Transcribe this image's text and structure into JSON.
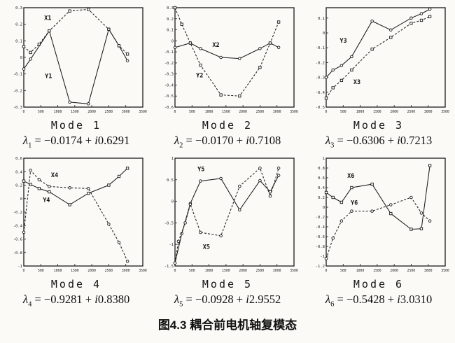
{
  "figure": {
    "caption": "图4.3 耦合前电机轴复模态"
  },
  "chart_data": [
    {
      "type": "line",
      "title": "Mode 1",
      "eigenvalue": {
        "sym": "λ",
        "sub": "1",
        "pre": "= −0.0174 + ",
        "i": "i",
        "imag": "0.6291"
      },
      "xlim": [
        0,
        3500
      ],
      "ylim": [
        -0.3,
        0.3
      ],
      "xticks": [
        "0",
        "500",
        "1000",
        "1500",
        "2000",
        "2500",
        "3000",
        "3500"
      ],
      "yticks": [
        "0.3",
        "0.2",
        "0.1",
        "0",
        "-0.1",
        "-0.2",
        "-0.3"
      ],
      "grid": false,
      "legend": "inline-labels",
      "series": [
        {
          "name": "X1",
          "line": "dashed",
          "marker": "square",
          "label_at": [
            600,
            0.225
          ],
          "points": [
            [
              0,
              0.065
            ],
            [
              200,
              0.03
            ],
            [
              450,
              0.08
            ],
            [
              750,
              0.16
            ],
            [
              1350,
              0.28
            ],
            [
              1900,
              0.29
            ],
            [
              2500,
              0.17
            ],
            [
              2800,
              0.07
            ],
            [
              3050,
              0.02
            ]
          ]
        },
        {
          "name": "Y1",
          "line": "solid",
          "marker": "circle",
          "label_at": [
            620,
            -0.125
          ],
          "points": [
            [
              0,
              -0.07
            ],
            [
              200,
              -0.01
            ],
            [
              750,
              0.16
            ],
            [
              1350,
              -0.27
            ],
            [
              1900,
              -0.28
            ],
            [
              2500,
              0.17
            ],
            [
              2800,
              0.07
            ],
            [
              3050,
              -0.02
            ]
          ]
        }
      ]
    },
    {
      "type": "line",
      "title": "Mode 2",
      "eigenvalue": {
        "sym": "λ",
        "sub": "2",
        "pre": "= −0.0170 + ",
        "i": "i",
        "imag": "0.7108"
      },
      "xlim": [
        0,
        3500
      ],
      "ylim": [
        -0.6,
        0.3
      ],
      "xticks": [
        "0",
        "500",
        "1000",
        "1500",
        "2000",
        "2500",
        "3000",
        "3500"
      ],
      "yticks": [
        "0.3",
        "0.2",
        "0.1",
        "0",
        "-0.1",
        "-0.2",
        "-0.3",
        "-0.4",
        "-0.5",
        "-0.6"
      ],
      "grid": false,
      "legend": "inline-labels",
      "series": [
        {
          "name": "X2",
          "line": "solid",
          "marker": "circle",
          "label_at": [
            1100,
            -0.055
          ],
          "points": [
            [
              0,
              -0.06
            ],
            [
              450,
              -0.02
            ],
            [
              750,
              -0.07
            ],
            [
              1350,
              -0.15
            ],
            [
              1900,
              -0.16
            ],
            [
              2500,
              -0.07
            ],
            [
              2800,
              -0.02
            ],
            [
              3050,
              -0.06
            ]
          ]
        },
        {
          "name": "Y2",
          "line": "dashed",
          "marker": "square",
          "label_at": [
            620,
            -0.33
          ],
          "points": [
            [
              0,
              0.3
            ],
            [
              200,
              0.15
            ],
            [
              450,
              -0.02
            ],
            [
              750,
              -0.22
            ],
            [
              1350,
              -0.49
            ],
            [
              1900,
              -0.5
            ],
            [
              2500,
              -0.24
            ],
            [
              2800,
              -0.02
            ],
            [
              3050,
              0.17
            ]
          ]
        }
      ]
    },
    {
      "type": "line",
      "title": "Mode 3",
      "eigenvalue": {
        "sym": "λ",
        "sub": "3",
        "pre": "= −0.6306 + ",
        "i": "i",
        "imag": "0.7213"
      },
      "xlim": [
        0,
        3500
      ],
      "ylim": [
        -0.5,
        0.17
      ],
      "xticks": [
        "0",
        "500",
        "1000",
        "1500",
        "2000",
        "2500",
        "3000",
        "3500"
      ],
      "yticks": [
        "0.1",
        "0",
        "-0.1",
        "-0.2",
        "-0.3",
        "-0.4",
        "-0.5"
      ],
      "grid": false,
      "legend": "inline-labels",
      "series": [
        {
          "name": "Y3",
          "line": "solid",
          "marker": "circle",
          "label_at": [
            400,
            -0.065
          ],
          "points": [
            [
              0,
              -0.3
            ],
            [
              200,
              -0.25
            ],
            [
              450,
              -0.22
            ],
            [
              750,
              -0.16
            ],
            [
              1350,
              0.08
            ],
            [
              1900,
              0.02
            ],
            [
              2500,
              0.1
            ],
            [
              2800,
              0.13
            ],
            [
              3050,
              0.16
            ]
          ]
        },
        {
          "name": "X3",
          "line": "dashed",
          "marker": "square",
          "label_at": [
            800,
            -0.345
          ],
          "points": [
            [
              0,
              -0.44
            ],
            [
              200,
              -0.37
            ],
            [
              450,
              -0.32
            ],
            [
              750,
              -0.25
            ],
            [
              1350,
              -0.11
            ],
            [
              1900,
              -0.03
            ],
            [
              2500,
              0.065
            ],
            [
              2800,
              0.085
            ],
            [
              3050,
              0.11
            ]
          ]
        }
      ]
    },
    {
      "type": "line",
      "title": "Mode 4",
      "eigenvalue": {
        "sym": "λ",
        "sub": "4",
        "pre": "= −0.9281 + ",
        "i": "i",
        "imag": "0.8380"
      },
      "xlim": [
        0,
        3500
      ],
      "ylim": [
        -1,
        0.6
      ],
      "xticks": [
        "0",
        "500",
        "1000",
        "1500",
        "2000",
        "2500",
        "3000",
        "3500"
      ],
      "yticks": [
        "0.6",
        "0.4",
        "0.2",
        "0",
        "-0.2",
        "-0.4",
        "-0.6",
        "-0.8",
        "-1"
      ],
      "grid": false,
      "legend": "inline-labels",
      "series": [
        {
          "name": "X4",
          "line": "dashed",
          "marker": "circle",
          "label_at": [
            800,
            0.32
          ],
          "points": [
            [
              0,
              -0.5
            ],
            [
              200,
              0.42
            ],
            [
              450,
              0.28
            ],
            [
              750,
              0.18
            ],
            [
              1350,
              0.16
            ],
            [
              1900,
              0.15
            ],
            [
              2500,
              -0.38
            ],
            [
              2800,
              -0.65
            ],
            [
              3050,
              -0.93
            ]
          ]
        },
        {
          "name": "Y4",
          "line": "solid",
          "marker": "square",
          "label_at": [
            560,
            -0.05
          ],
          "points": [
            [
              0,
              0.26
            ],
            [
              200,
              0.21
            ],
            [
              450,
              0.15
            ],
            [
              750,
              0.1
            ],
            [
              1350,
              -0.09
            ],
            [
              1900,
              0.08
            ],
            [
              2500,
              0.2
            ],
            [
              2800,
              0.33
            ],
            [
              3050,
              0.45
            ]
          ]
        }
      ]
    },
    {
      "type": "line",
      "title": "Mode 5",
      "eigenvalue": {
        "sym": "λ",
        "sub": "5",
        "pre": "= −0.0928 + ",
        "i": "i",
        "imag": "2.9552"
      },
      "xlim": [
        0,
        3500
      ],
      "ylim": [
        -1.5,
        1
      ],
      "xticks": [
        "0",
        "500",
        "1000",
        "1500",
        "2000",
        "2500",
        "3000",
        "3500"
      ],
      "yticks": [
        "1",
        "0.5",
        "0",
        "-0.5",
        "-1",
        "-1.5"
      ],
      "grid": false,
      "legend": "inline-labels",
      "series": [
        {
          "name": "Y5",
          "line": "solid",
          "marker": "circle",
          "label_at": [
            660,
            0.7
          ],
          "points": [
            [
              0,
              -1.43
            ],
            [
              200,
              -0.75
            ],
            [
              450,
              -0.05
            ],
            [
              750,
              0.47
            ],
            [
              1350,
              0.53
            ],
            [
              1900,
              -0.2
            ],
            [
              2500,
              0.48
            ],
            [
              2800,
              0.22
            ],
            [
              3050,
              0.6
            ]
          ]
        },
        {
          "name": "X5",
          "line": "dashed",
          "marker": "circle",
          "label_at": [
            820,
            -1.1
          ],
          "points": [
            [
              0,
              -1.43
            ],
            [
              100,
              -0.93
            ],
            [
              300,
              -0.5
            ],
            [
              450,
              -0.07
            ],
            [
              750,
              -0.72
            ],
            [
              1350,
              -0.8
            ],
            [
              1900,
              0.35
            ],
            [
              2500,
              0.77
            ],
            [
              2800,
              0.12
            ],
            [
              3050,
              0.77
            ]
          ]
        }
      ]
    },
    {
      "type": "line",
      "title": "Mode 6",
      "eigenvalue": {
        "sym": "λ",
        "sub": "6",
        "pre": "= −0.5428 + ",
        "i": "i",
        "imag": "3.0310"
      },
      "xlim": [
        0,
        3500
      ],
      "ylim": [
        -1.2,
        1
      ],
      "xticks": [
        "0",
        "500",
        "1000",
        "1500",
        "2000",
        "2500",
        "3000",
        "3500"
      ],
      "yticks": [
        "1",
        "0.8",
        "0.6",
        "0.4",
        "0.2",
        "0",
        "-0.2",
        "-0.4",
        "-0.6",
        "-0.8",
        "-1",
        "-1.2"
      ],
      "grid": false,
      "legend": "inline-labels",
      "series": [
        {
          "name": "X6",
          "line": "solid",
          "marker": "square",
          "label_at": [
            620,
            0.6
          ],
          "points": [
            [
              0,
              0.3
            ],
            [
              200,
              0.2
            ],
            [
              450,
              0.1
            ],
            [
              750,
              0.4
            ],
            [
              1350,
              0.47
            ],
            [
              1900,
              -0.13
            ],
            [
              2500,
              -0.45
            ],
            [
              2800,
              -0.44
            ],
            [
              3050,
              0.85
            ]
          ]
        },
        {
          "name": "Y6",
          "line": "dashed",
          "marker": "circle",
          "label_at": [
            720,
            0.05
          ],
          "points": [
            [
              0,
              -1.05
            ],
            [
              200,
              -0.63
            ],
            [
              450,
              -0.28
            ],
            [
              750,
              -0.08
            ],
            [
              1350,
              -0.08
            ],
            [
              1900,
              0.05
            ],
            [
              2500,
              0.2
            ],
            [
              2800,
              -0.12
            ],
            [
              3050,
              -0.28
            ]
          ]
        }
      ]
    }
  ]
}
